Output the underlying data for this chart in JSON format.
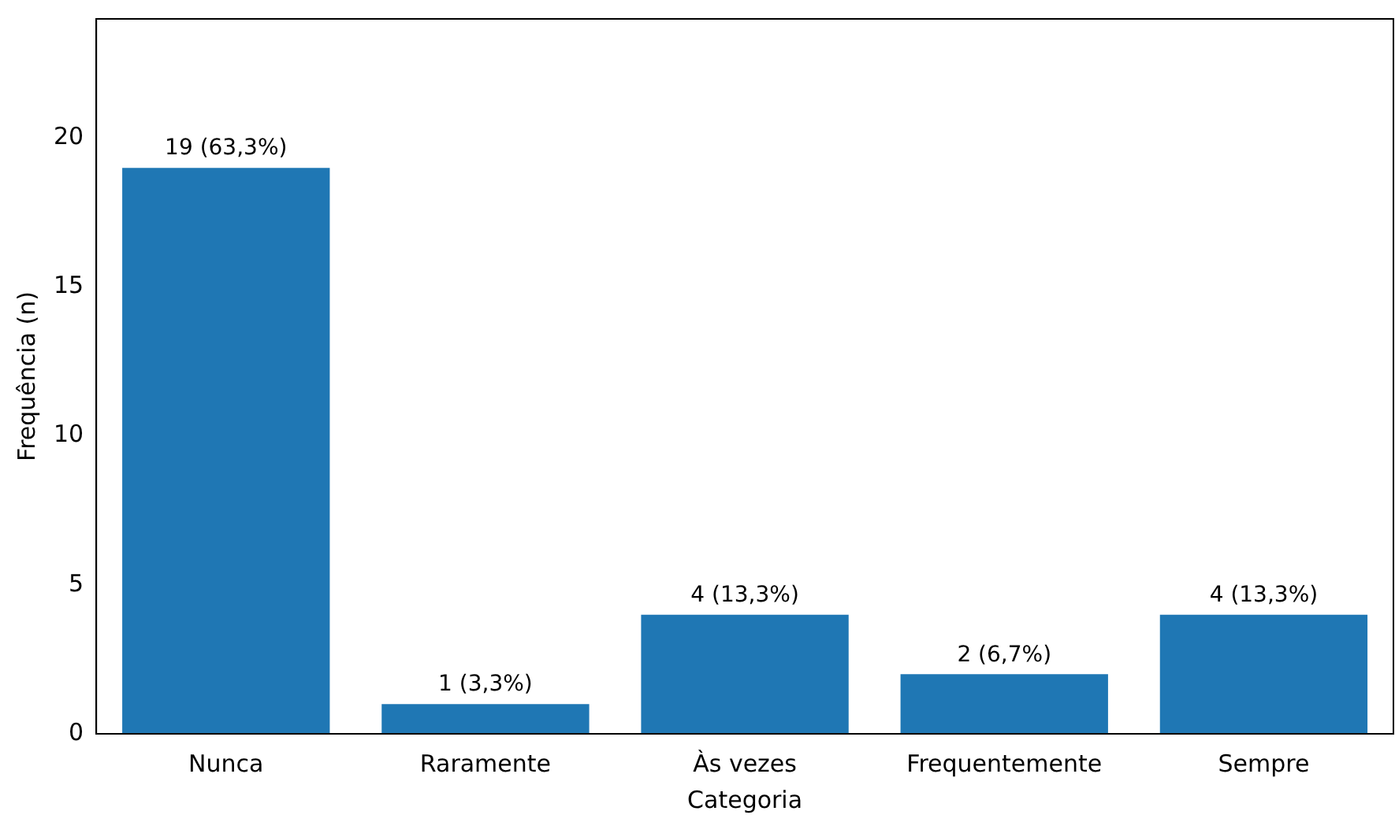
{
  "chart_data": {
    "type": "bar",
    "xlabel": "Categoria",
    "ylabel": "Frequência (n)",
    "categories": [
      "Nunca",
      "Raramente",
      "Às vezes",
      "Frequentemente",
      "Sempre"
    ],
    "values": [
      19,
      1,
      4,
      2,
      4
    ],
    "value_labels": [
      "19 (63,3%)",
      "1 (3,3%)",
      "4 (13,3%)",
      "2 (6,7%)",
      "4 (13,3%)"
    ],
    "color": "#1f77b4",
    "ylim": [
      0,
      24
    ],
    "yticks": [
      0,
      5,
      10,
      15,
      20
    ],
    "grid": false,
    "legend": false
  }
}
